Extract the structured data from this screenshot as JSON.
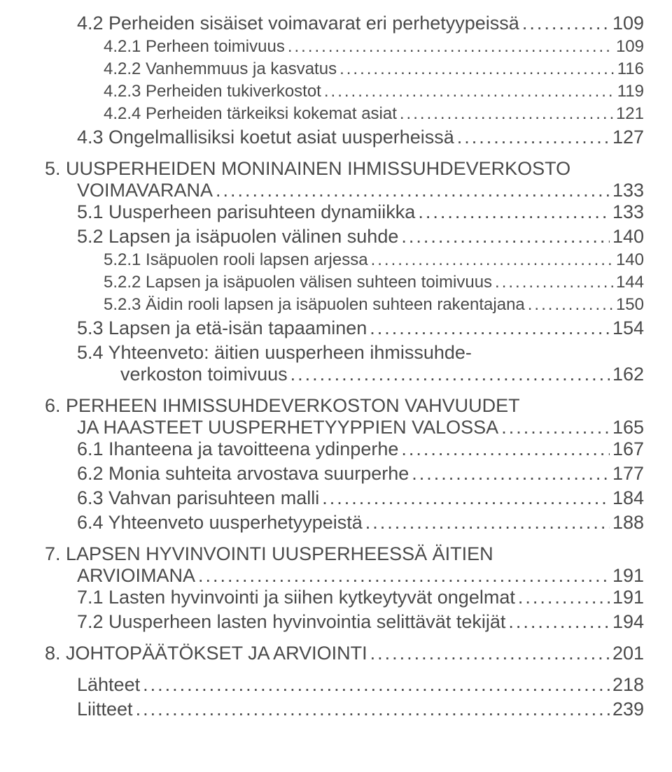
{
  "text_color": "#4a4a4a",
  "entries": [
    {
      "lvl": 1,
      "label": "4.2 Perheiden sisäiset voimavarat eri perhetyypeissä",
      "page": "109",
      "wrap_at": 0
    },
    {
      "lvl": 2,
      "label": "4.2.1 Perheen toimivuus",
      "page": "109"
    },
    {
      "lvl": 2,
      "label": "4.2.2 Vanhemmuus ja kasvatus",
      "page": "116"
    },
    {
      "lvl": 2,
      "label": "4.2.3 Perheiden tukiverkostot",
      "page": "119"
    },
    {
      "lvl": 2,
      "label": "4.2.4 Perheiden tärkeiksi kokemat asiat",
      "page": "121"
    },
    {
      "lvl": 1,
      "label": "4.3 Ongelmallisiksi koetut asiat uusperheissä",
      "page": "127"
    },
    {
      "lvl": 0,
      "gap": true,
      "label_first": "5. UUSPERHEIDEN MONINAINEN IHMISSUHDEVERKOSTO",
      "label_second": "VOIMAVARANA",
      "page": "133",
      "second_indent": 46
    },
    {
      "lvl": 1,
      "label": "5.1 Uusperheen parisuhteen dynamiikka",
      "page": "133"
    },
    {
      "lvl": 1,
      "label": "5.2 Lapsen ja isäpuolen välinen suhde",
      "page": "140"
    },
    {
      "lvl": 2,
      "label": "5.2.1 Isäpuolen rooli lapsen arjessa",
      "page": "140"
    },
    {
      "lvl": 2,
      "label": "5.2.2 Lapsen ja isäpuolen välisen suhteen toimivuus",
      "page": "144"
    },
    {
      "lvl": 2,
      "label": "5.2.3 Äidin rooli lapsen ja isäpuolen suhteen rakentajana",
      "page": "150"
    },
    {
      "lvl": 1,
      "label": "5.3 Lapsen ja etä-isän tapaaminen",
      "page": "154"
    },
    {
      "lvl": 1,
      "label_first": "5.4 Yhteenveto: äitien uusperheen ihmissuhde-",
      "label_second": "verkoston toimivuus",
      "page": "162",
      "second_indent": 108
    },
    {
      "lvl": 0,
      "gap": true,
      "label_first": "6. PERHEEN IHMISSUHDEVERKOSTON VAHVUUDET",
      "label_second": "JA HAASTEET UUSPERHETYYPPIEN VALOSSA",
      "page": "165",
      "second_indent": 46
    },
    {
      "lvl": 1,
      "label": "6.1 Ihanteena ja tavoitteena ydinperhe",
      "page": "167"
    },
    {
      "lvl": 1,
      "label": "6.2 Monia suhteita arvostava suurperhe",
      "page": "177"
    },
    {
      "lvl": 1,
      "label": "6.3 Vahvan parisuhteen malli",
      "page": "184"
    },
    {
      "lvl": 1,
      "label": "6.4 Yhteenveto uusperhetyypeistä",
      "page": "188"
    },
    {
      "lvl": 0,
      "gap": true,
      "label_first": "7. LAPSEN HYVINVOINTI UUSPERHEESSÄ ÄITIEN",
      "label_second": "ARVIOIMANA",
      "page": "191",
      "second_indent": 46
    },
    {
      "lvl": 1,
      "label": "7.1 Lasten hyvinvointi ja siihen kytkeytyvät ongelmat",
      "page": "191",
      "tight_dots": true
    },
    {
      "lvl": 1,
      "label": "7.2 Uusperheen lasten hyvinvointia selittävät tekijät",
      "page": "194",
      "tight_dots": true
    },
    {
      "lvl": 0,
      "gap": true,
      "label": "8. JOHTOPÄÄTÖKSET JA ARVIOINTI",
      "page": "201"
    },
    {
      "lvl": "end",
      "gap": true,
      "label": "Lähteet",
      "page": "218"
    },
    {
      "lvl": "end",
      "label": "Liitteet",
      "page": "239"
    }
  ]
}
